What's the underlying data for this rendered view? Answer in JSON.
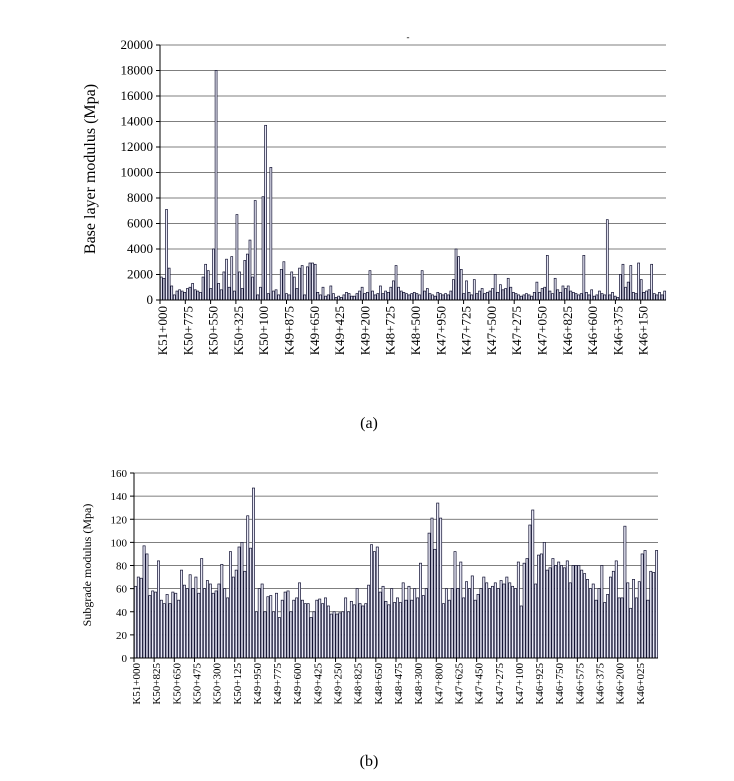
{
  "chart_data": [
    {
      "type": "bar",
      "panel": "(a)",
      "title": "",
      "xlabel": "",
      "ylabel": "Base layer modulus (Mpa)",
      "ylim": [
        0,
        20000
      ],
      "yticks": [
        0,
        2000,
        4000,
        6000,
        8000,
        10000,
        12000,
        14000,
        16000,
        18000,
        20000
      ],
      "grid": "horizontal",
      "tick_labels": [
        "K51+000",
        "K50+775",
        "K50+550",
        "K50+325",
        "K50+100",
        "K49+875",
        "K49+650",
        "K49+425",
        "K49+200",
        "K48+725",
        "K48+500",
        "K47+950",
        "K47+725",
        "K47+500",
        "K47+275",
        "K47+050",
        "K46+825",
        "K46+600",
        "K46+375",
        "K46+150"
      ],
      "values": [
        1800,
        1700,
        7100,
        2500,
        1100,
        400,
        700,
        800,
        700,
        600,
        900,
        1000,
        1300,
        800,
        700,
        600,
        1800,
        2800,
        2300,
        900,
        4000,
        18000,
        1300,
        800,
        2200,
        3200,
        1000,
        3400,
        700,
        6700,
        2200,
        900,
        3100,
        3600,
        4700,
        1800,
        7800,
        400,
        1000,
        8100,
        13700,
        500,
        10400,
        700,
        800,
        400,
        2400,
        3000,
        500,
        400,
        2200,
        1800,
        900,
        2500,
        2700,
        400,
        2600,
        2900,
        2900,
        2800,
        600,
        400,
        1000,
        300,
        400,
        1100,
        500,
        200,
        300,
        200,
        400,
        600,
        500,
        300,
        300,
        500,
        700,
        1000,
        500,
        600,
        2300,
        700,
        400,
        500,
        1100,
        500,
        700,
        600,
        1000,
        1500,
        2700,
        1000,
        700,
        600,
        500,
        400,
        500,
        600,
        500,
        400,
        2300,
        700,
        900,
        500,
        400,
        300,
        600,
        500,
        400,
        500,
        400,
        700,
        1600,
        4000,
        3400,
        2400,
        500,
        1500,
        600,
        400,
        1600,
        500,
        700,
        900,
        500,
        600,
        700,
        900,
        2000,
        600,
        1200,
        800,
        900,
        1700,
        1000,
        600,
        500,
        400,
        300,
        400,
        500,
        400,
        300,
        600,
        1400,
        600,
        900,
        1000,
        3500,
        700,
        500,
        1700,
        800,
        600,
        1100,
        900,
        1100,
        700,
        600,
        500,
        400,
        500,
        3500,
        600,
        400,
        800,
        300,
        400,
        700,
        500,
        400,
        6300,
        400,
        600,
        300,
        200,
        2000,
        2800,
        1000,
        1400,
        2700,
        600,
        500,
        2900,
        1600,
        600,
        700,
        800,
        2800,
        500,
        400,
        600,
        400,
        700
      ]
    },
    {
      "type": "bar",
      "panel": "(b)",
      "title": "",
      "xlabel": "",
      "ylabel": "Subgrade modulus (Mpa)",
      "ylim": [
        0,
        160
      ],
      "yticks": [
        0,
        20,
        40,
        60,
        80,
        100,
        120,
        140,
        160
      ],
      "grid": "horizontal",
      "tick_labels": [
        "K51+000",
        "K50+825",
        "K50+650",
        "K50+475",
        "K50+300",
        "K50+125",
        "K49+950",
        "K49+775",
        "K49+600",
        "K49+425",
        "K49+250",
        "K48+825",
        "K48+650",
        "K48+475",
        "K48+300",
        "K47+800",
        "K47+625",
        "K47+450",
        "K47+275",
        "K47+100",
        "K46+925",
        "K46+750",
        "K46+575",
        "K46+375",
        "K46+200",
        "K46+025"
      ],
      "values": [
        62,
        70,
        69,
        97,
        90,
        54,
        58,
        57,
        84,
        50,
        47,
        55,
        47,
        57,
        56,
        50,
        76,
        63,
        60,
        72,
        60,
        70,
        56,
        86,
        60,
        67,
        64,
        56,
        58,
        64,
        81,
        60,
        52,
        92,
        70,
        76,
        96,
        100,
        75,
        123,
        95,
        147,
        40,
        60,
        64,
        40,
        53,
        54,
        40,
        56,
        35,
        50,
        57,
        58,
        40,
        50,
        52,
        65,
        50,
        47,
        47,
        35,
        40,
        50,
        51,
        47,
        52,
        45,
        38,
        40,
        38,
        39,
        40,
        52,
        40,
        49,
        46,
        60,
        47,
        45,
        47,
        63,
        98,
        92,
        96,
        57,
        62,
        49,
        46,
        60,
        48,
        52,
        48,
        65,
        50,
        62,
        50,
        60,
        52,
        82,
        54,
        60,
        108,
        121,
        94,
        134,
        121,
        47,
        60,
        50,
        60,
        92,
        60,
        83,
        52,
        66,
        60,
        71,
        50,
        55,
        60,
        70,
        65,
        60,
        62,
        65,
        60,
        67,
        64,
        70,
        65,
        62,
        60,
        83,
        45,
        82,
        86,
        115,
        128,
        64,
        89,
        90,
        100,
        76,
        78,
        86,
        80,
        83,
        80,
        78,
        84,
        65,
        80,
        80,
        80,
        76,
        73,
        68,
        60,
        64,
        50,
        60,
        80,
        48,
        55,
        70,
        75,
        84,
        52,
        52,
        114,
        65,
        43,
        68,
        52,
        66,
        90,
        93,
        50,
        75,
        74,
        93
      ]
    }
  ],
  "captions": {
    "a": "(a)",
    "b": "(b)"
  },
  "mark": "-"
}
